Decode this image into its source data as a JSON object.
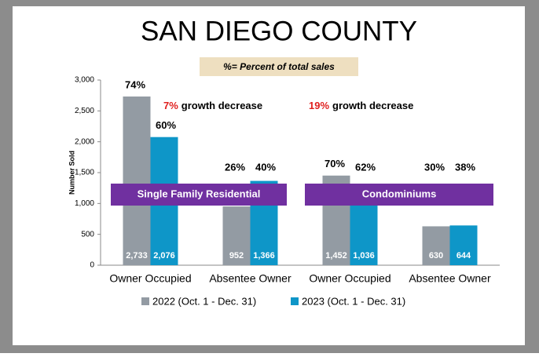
{
  "chart_data": {
    "type": "bar",
    "title": "SAN DIEGO COUNTY",
    "subtitle": "%= Percent of total sales",
    "y_label": "Number Sold",
    "categories": [
      "Owner Occupied",
      "Absentee Owner",
      "Owner Occupied",
      "Absentee Owner"
    ],
    "series": [
      {
        "name": "2022 (Oct. 1 - Dec. 31)",
        "color": "#939ba3",
        "values": [
          2733,
          952,
          1452,
          630
        ],
        "value_labels": [
          "2,733",
          "952",
          "1,452",
          "630"
        ],
        "share_labels": [
          "74%",
          "26%",
          "70%",
          "30%"
        ]
      },
      {
        "name": "2023 (Oct. 1 - Dec. 31)",
        "color": "#0e96c8",
        "values": [
          2076,
          1366,
          1036,
          644
        ],
        "value_labels": [
          "2,076",
          "1,366",
          "1,036",
          "644"
        ],
        "share_labels": [
          "60%",
          "40%",
          "62%",
          "38%"
        ]
      }
    ],
    "groups": [
      "Single Family Residential",
      "Condominiums"
    ],
    "annotations": [
      {
        "highlight": "7%",
        "text": "growth decrease"
      },
      {
        "highlight": "19%",
        "text": "growth decrease"
      }
    ],
    "ylim": [
      0,
      3000
    ],
    "yticks": [
      0,
      500,
      {
        "value": 1000,
        "label": "1,000"
      },
      {
        "value": 1500,
        "label": "1,500"
      },
      {
        "value": 2000,
        "label": "2,000"
      },
      {
        "value": 2500,
        "label": "2,500"
      },
      {
        "value": 3000,
        "label": "3,000"
      }
    ]
  }
}
